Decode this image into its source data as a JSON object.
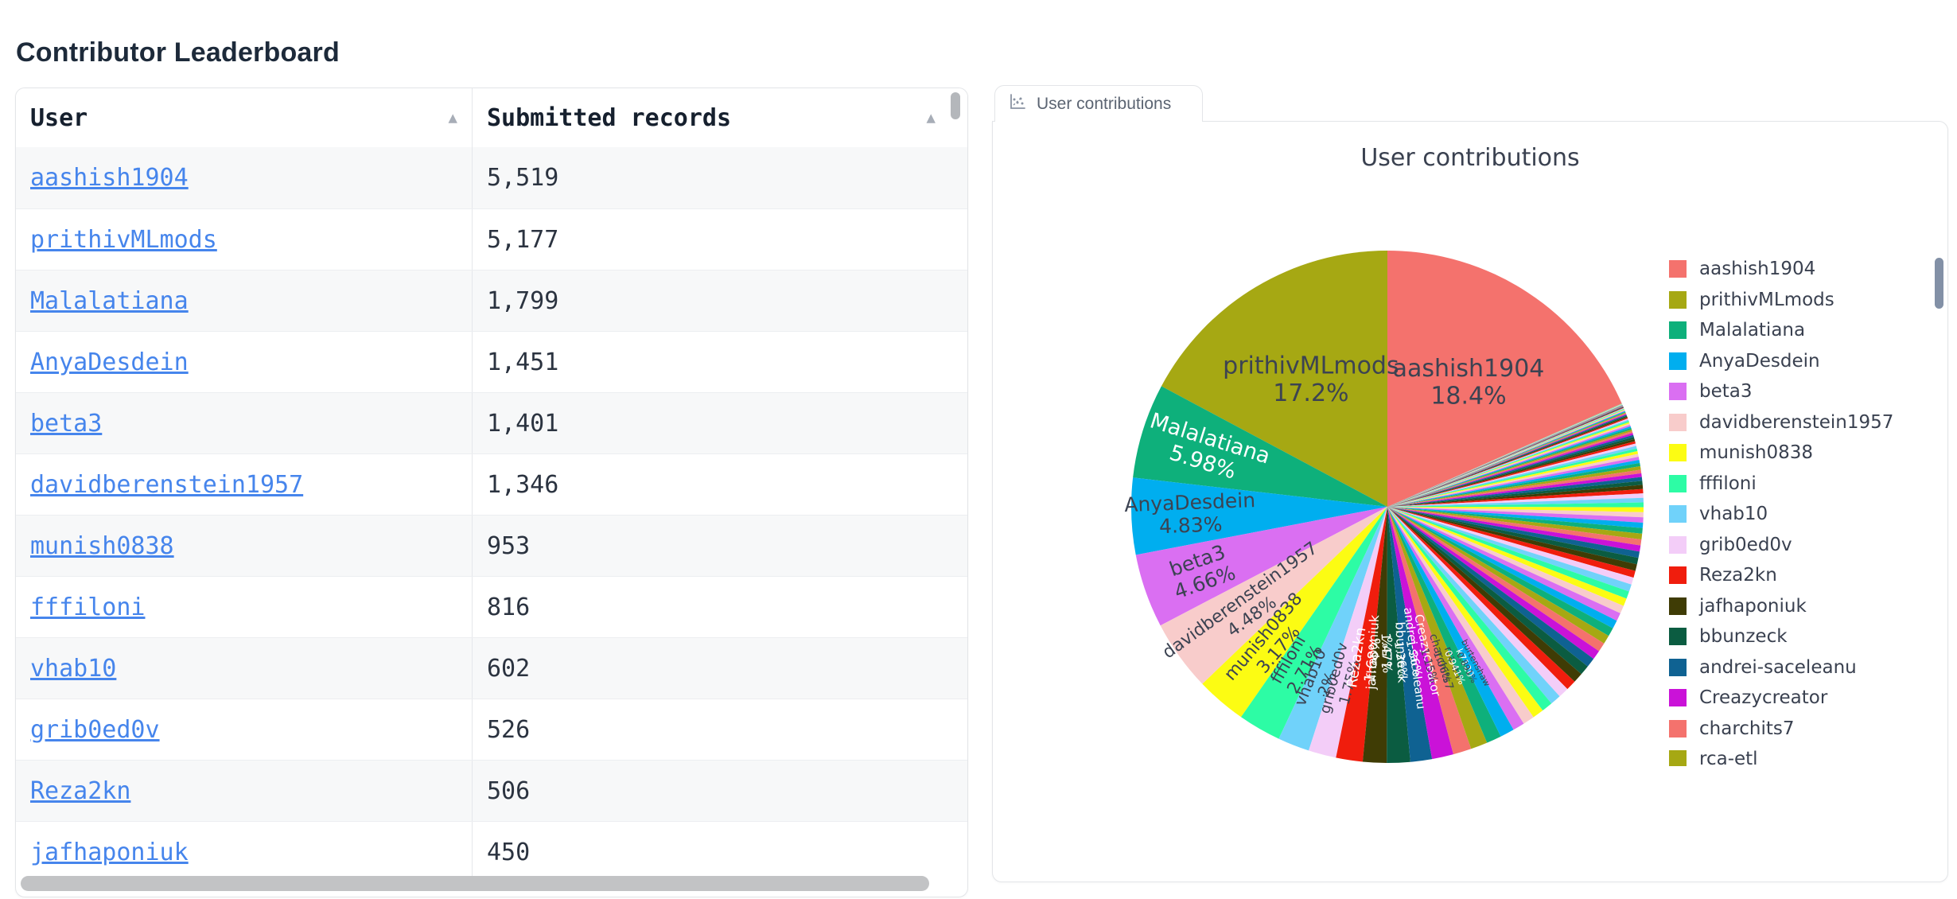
{
  "page": {
    "title": "Contributor Leaderboard"
  },
  "table": {
    "columns": [
      {
        "label": "User",
        "sort_icon": "▲"
      },
      {
        "label": "Submitted records",
        "sort_icon": "▲"
      }
    ],
    "rows": [
      {
        "user": "aashish1904",
        "records": "5,519"
      },
      {
        "user": "prithivMLmods",
        "records": "5,177"
      },
      {
        "user": "Malalatiana",
        "records": "1,799"
      },
      {
        "user": "AnyaDesdein",
        "records": "1,451"
      },
      {
        "user": "beta3",
        "records": "1,401"
      },
      {
        "user": "davidberenstein1957",
        "records": "1,346"
      },
      {
        "user": "munish0838",
        "records": "953"
      },
      {
        "user": "fffiloni",
        "records": "816"
      },
      {
        "user": "vhab10",
        "records": "602"
      },
      {
        "user": "grib0ed0v",
        "records": "526"
      },
      {
        "user": "Reza2kn",
        "records": "506"
      },
      {
        "user": "jafhaponiuk",
        "records": "450"
      }
    ]
  },
  "chart_panel": {
    "tab_label": "User contributions",
    "tab_icon": "scatter-chart-icon"
  },
  "chart_data": {
    "type": "pie",
    "title": "User contributions",
    "legend_position": "right",
    "palette": [
      "#f4726d",
      "#a6a813",
      "#0eb07b",
      "#00aeef",
      "#da6ff2",
      "#f8cccb",
      "#fcfc13",
      "#2dfca5",
      "#70d2fa",
      "#f3cdf8",
      "#f01d0d",
      "#3f3c05",
      "#0b5c41",
      "#0f6292",
      "#ca12d8"
    ],
    "slices": [
      {
        "name": "aashish1904",
        "pct": 18.4,
        "pct_label": "18.4%"
      },
      {
        "name": "prithivMLmods",
        "pct": 17.2,
        "pct_label": "17.2%"
      },
      {
        "name": "Malalatiana",
        "pct": 5.98,
        "pct_label": "5.98%"
      },
      {
        "name": "AnyaDesdein",
        "pct": 4.83,
        "pct_label": "4.83%"
      },
      {
        "name": "beta3",
        "pct": 4.66,
        "pct_label": "4.66%"
      },
      {
        "name": "davidberenstein1957",
        "pct": 4.48,
        "pct_label": "4.48%"
      },
      {
        "name": "munish0838",
        "pct": 3.17,
        "pct_label": "3.17%"
      },
      {
        "name": "fffiloni",
        "pct": 2.71,
        "pct_label": "2.71%"
      },
      {
        "name": "vhab10",
        "pct": 2.0,
        "pct_label": "2%"
      },
      {
        "name": "grib0ed0v",
        "pct": 1.75,
        "pct_label": "1.75%"
      },
      {
        "name": "Reza2kn",
        "pct": 1.68,
        "pct_label": "1.68%"
      },
      {
        "name": "jafhaponiuk",
        "pct": 1.5,
        "pct_label": "1.5%"
      },
      {
        "name": "bbunzeck",
        "pct": 1.47,
        "pct_label": "1.47%"
      },
      {
        "name": "andrei-saceleanu",
        "pct": 1.36,
        "pct_label": "1.36%"
      },
      {
        "name": "Creazycreator",
        "pct": 1.36,
        "pct_label": "1.36%"
      },
      {
        "name": "charchits7",
        "pct": 1.15,
        "pct_label": "1.15%"
      },
      {
        "name": "rca-etl",
        "pct": 1.06,
        "pct_label": "1.06%"
      },
      {
        "name": "k7120",
        "pct": 0.941,
        "pct_label": "0.941%"
      },
      {
        "name": "burtenshaw",
        "pct": 0.891,
        "pct_label": "0.891%"
      }
    ],
    "others_total_pct": 23.409,
    "white_label_slices": [
      "Malalatiana",
      "Reza2kn",
      "jafhaponiuk",
      "bbunzeck",
      "andrei-saceleanu",
      "Creazycreator",
      "k7120"
    ],
    "legend_visible_entries": [
      "aashish1904",
      "prithivMLmods",
      "Malalatiana",
      "AnyaDesdein",
      "beta3",
      "davidberenstein1957",
      "munish0838",
      "fffiloni",
      "vhab10",
      "grib0ed0v",
      "Reza2kn",
      "jafhaponiuk",
      "bbunzeck",
      "andrei-saceleanu",
      "Creazycreator",
      "charchits7",
      "rca-etl"
    ]
  },
  "colors": {
    "link": "#4685ec",
    "border": "#e3e5e8",
    "title_text": "#1d2a3a",
    "chart_text": "#3a4150"
  }
}
